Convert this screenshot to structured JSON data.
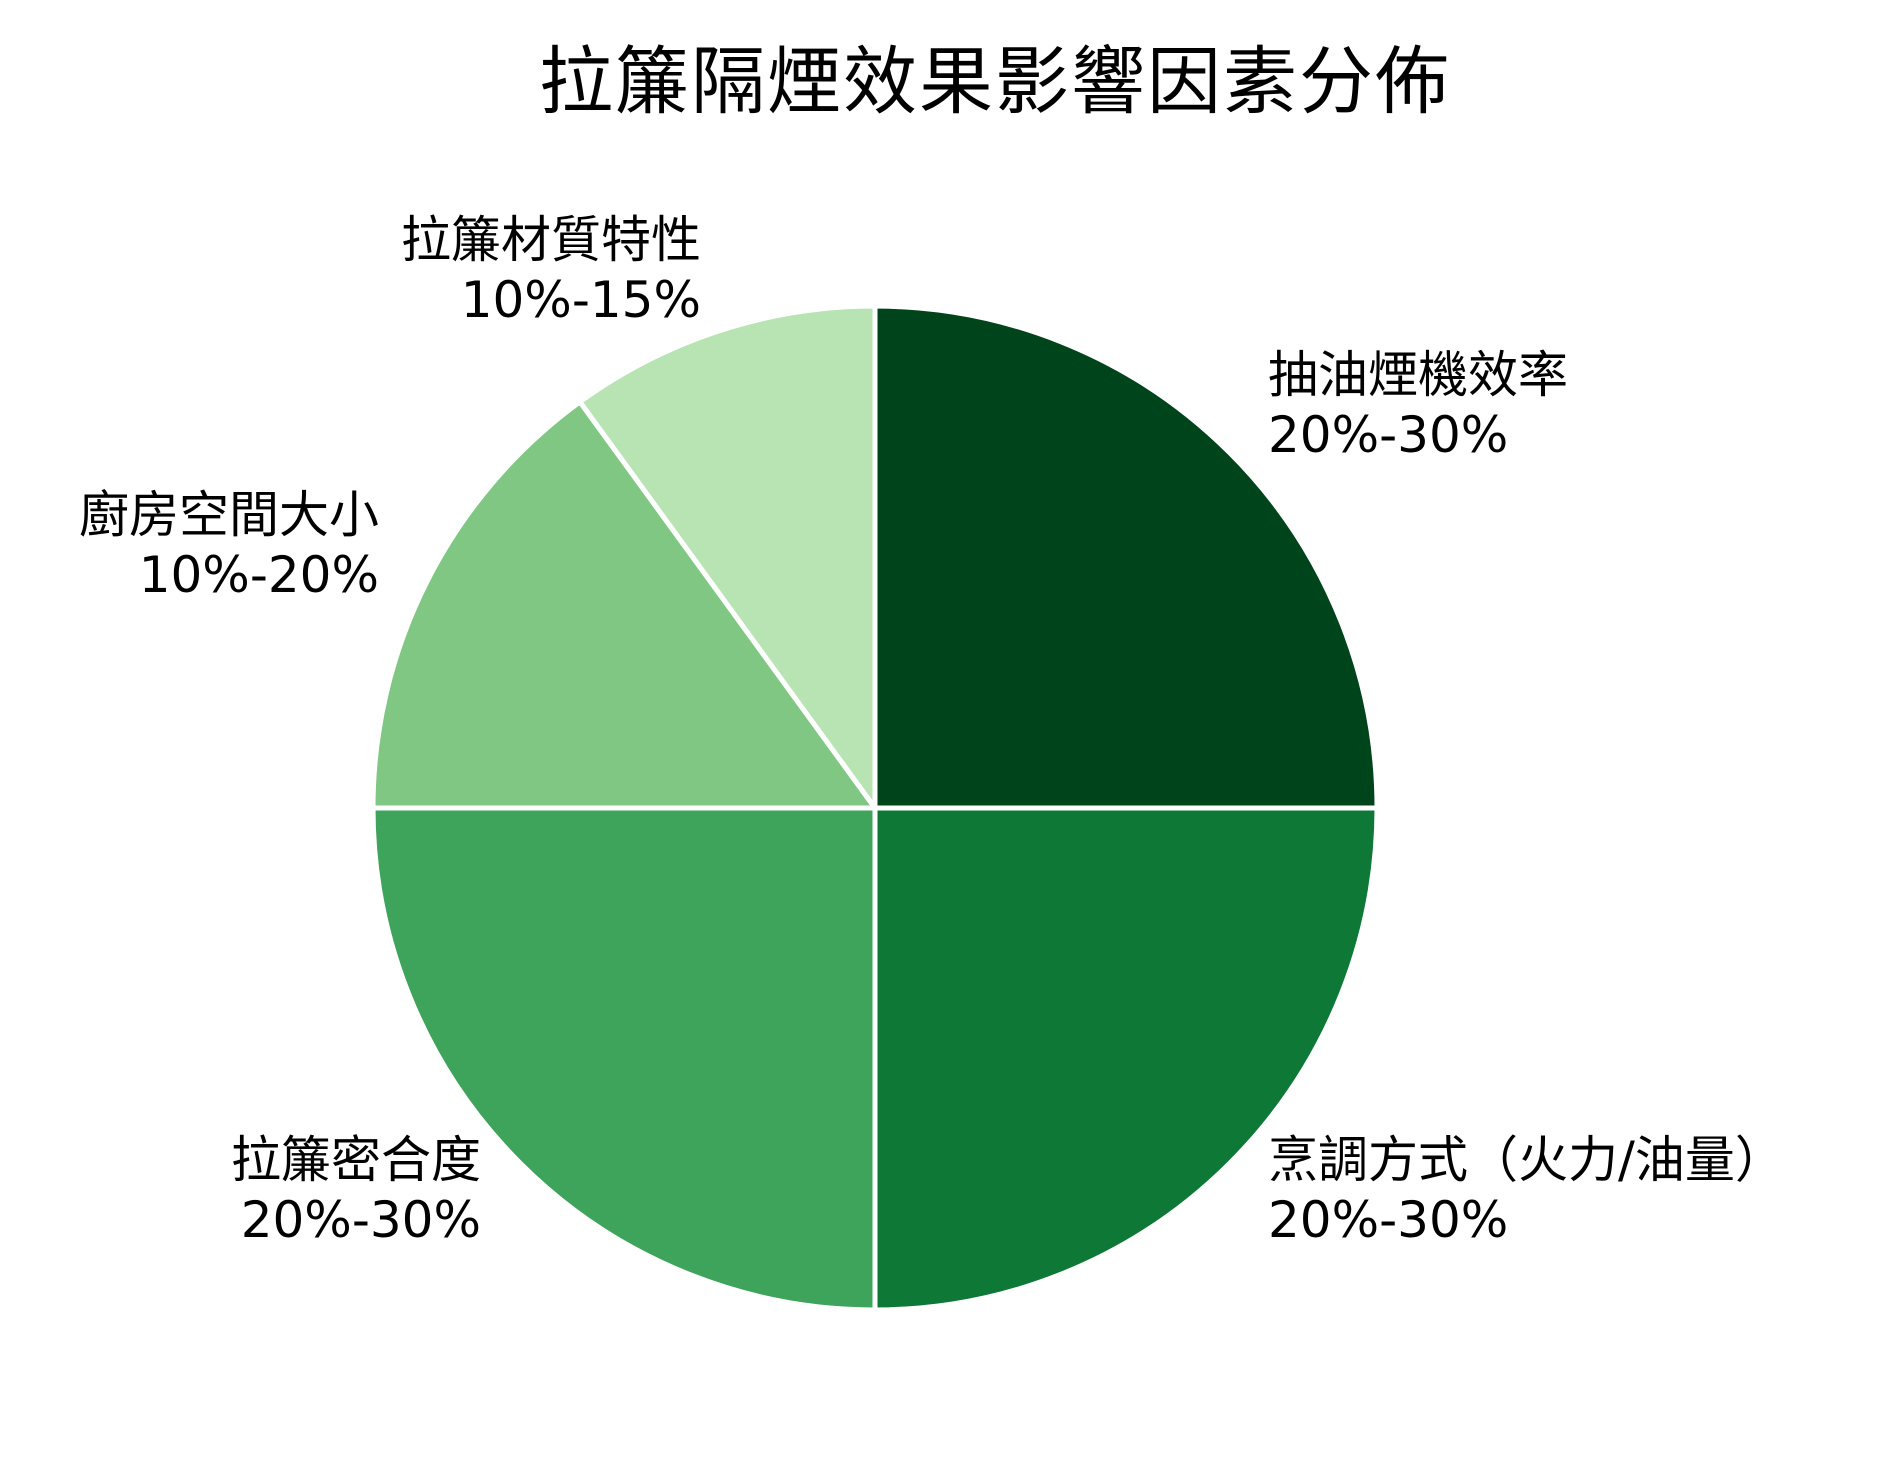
{
  "title": "拉簾隔煙效果影響因素分佈",
  "chart_data": {
    "type": "pie",
    "title": "拉簾隔煙效果影響因素分佈",
    "start_angle": 90,
    "direction": "clockwise",
    "slices": [
      {
        "label": "抽油煙機效率",
        "range": "20%-30%",
        "value": 25,
        "color": "#00441b"
      },
      {
        "label": "烹調方式（火力/油量）",
        "range": "20%-30%",
        "value": 25,
        "color": "#0e7837"
      },
      {
        "label": "拉簾密合度",
        "range": "20%-30%",
        "value": 25,
        "color": "#3ea35b"
      },
      {
        "label": "廚房空間大小",
        "range": "10%-20%",
        "value": 15,
        "color": "#80c784"
      },
      {
        "label": "拉簾材質特性",
        "range": "10%-15%",
        "value": 10,
        "color": "#b8e3b3"
      }
    ],
    "legend": "none (labels placed outside slices)"
  },
  "labels": {
    "s0": {
      "name": "抽油煙機效率",
      "range": "20%-30%"
    },
    "s1": {
      "name": "烹調方式（火力/油量）",
      "range": "20%-30%"
    },
    "s2": {
      "name": "拉簾密合度",
      "range": "20%-30%"
    },
    "s3": {
      "name": "廚房空間大小",
      "range": "10%-20%"
    },
    "s4": {
      "name": "拉簾材質特性",
      "range": "10%-15%"
    }
  }
}
